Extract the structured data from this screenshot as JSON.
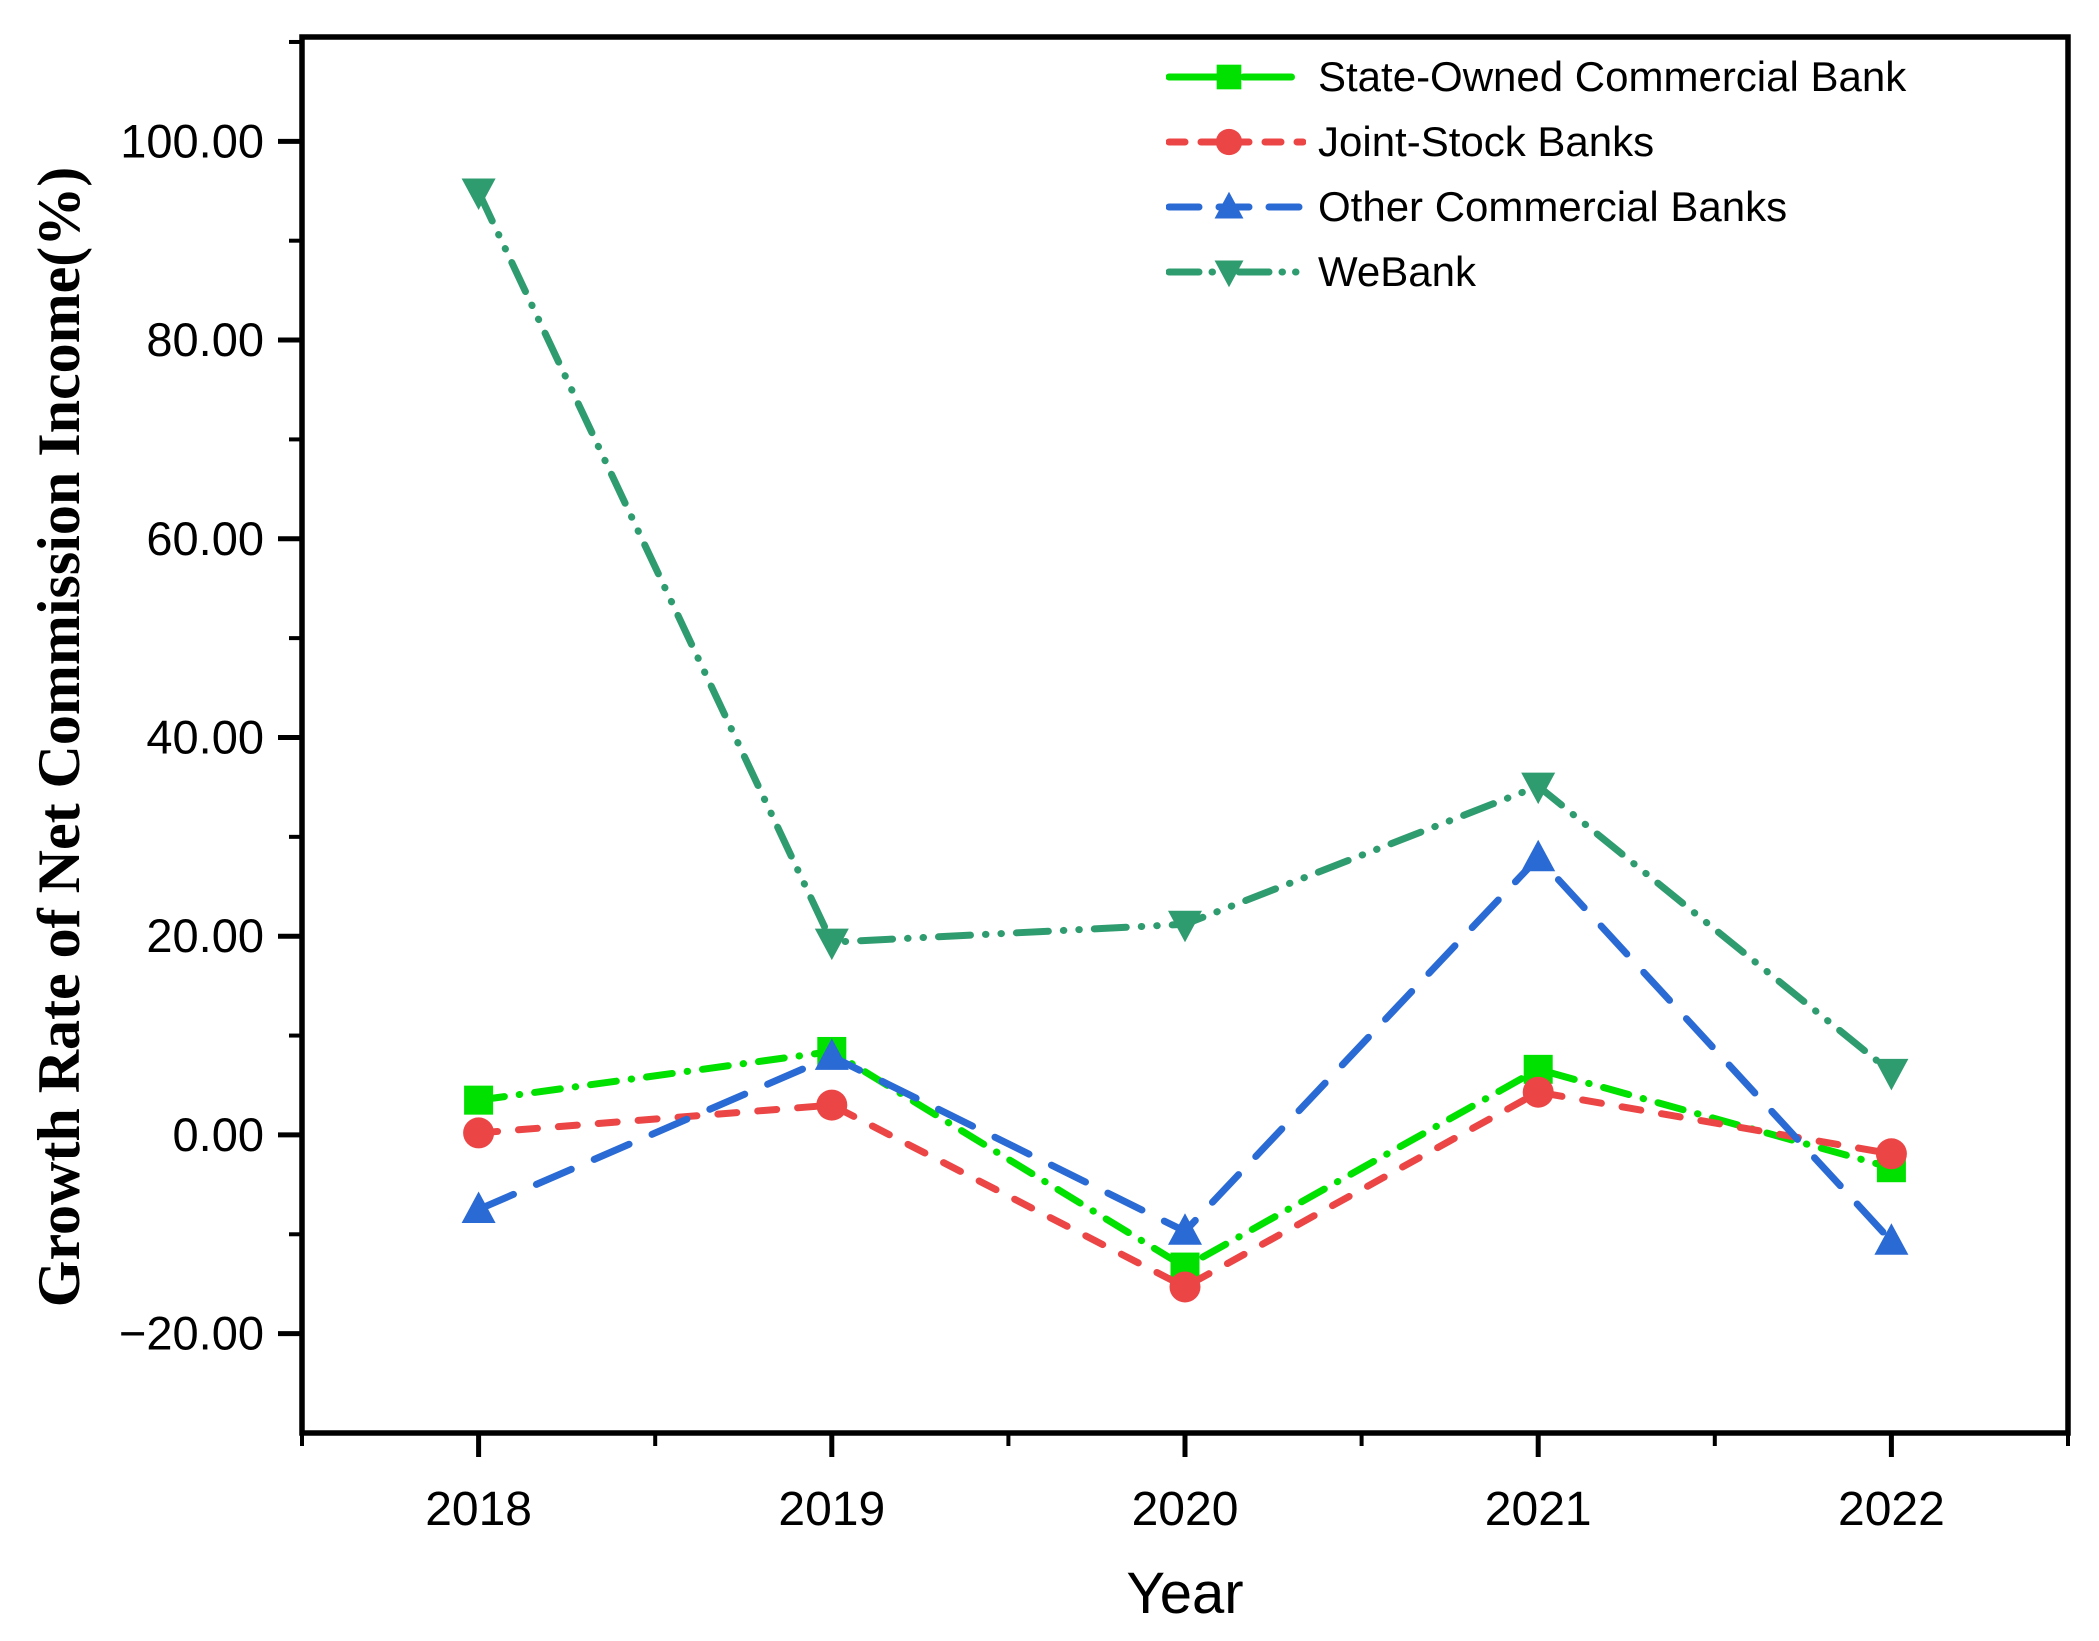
{
  "chart_data": {
    "type": "line",
    "title": "",
    "xlabel": "Year",
    "ylabel": "Growth Rate of Net Commission Income(%)",
    "x": [
      2018,
      2019,
      2020,
      2021,
      2022
    ],
    "x_tick_labels": [
      "2018",
      "2019",
      "2020",
      "2021",
      "2022"
    ],
    "xlim": [
      2017.5,
      2022.5
    ],
    "ylim": [
      -30,
      110.5
    ],
    "y_major_ticks": [
      -20,
      0,
      20,
      40,
      60,
      80,
      100
    ],
    "y_tick_labels": [
      "−20.00",
      "0.00",
      "20.00",
      "40.00",
      "60.00",
      "80.00",
      "100.00"
    ],
    "y_minor_ticks": [
      -10,
      10,
      30,
      50,
      70,
      90,
      110
    ],
    "x_minor_ticks": [
      2017.5,
      2018.5,
      2019.5,
      2020.5,
      2021.5,
      2022.5
    ],
    "grid": false,
    "legend_position": "top-right-inside",
    "axis_color": "#000000",
    "background_color": "#ffffff",
    "series": [
      {
        "name": "State-Owned Commercial Bank",
        "color": "#00E100",
        "marker": "square",
        "line_style": "dash-dot",
        "values": [
          3.5,
          8.4,
          -13.3,
          6.6,
          -3.3
        ]
      },
      {
        "name": "Joint-Stock Banks",
        "color": "#EC4545",
        "marker": "circle",
        "line_style": "dashed",
        "values": [
          0.2,
          3.0,
          -15.3,
          4.3,
          -1.9
        ]
      },
      {
        "name": "Other Commercial Banks",
        "color": "#2A6AD4",
        "marker": "triangle-up",
        "line_style": "long-dash",
        "values": [
          -7.5,
          7.9,
          -9.7,
          27.9,
          -10.7
        ]
      },
      {
        "name": "WeBank",
        "color": "#2F9C70",
        "marker": "triangle-down",
        "line_style": "dash-dot-dot",
        "values": [
          94.9,
          19.4,
          21.2,
          35.1,
          6.3
        ]
      }
    ]
  }
}
